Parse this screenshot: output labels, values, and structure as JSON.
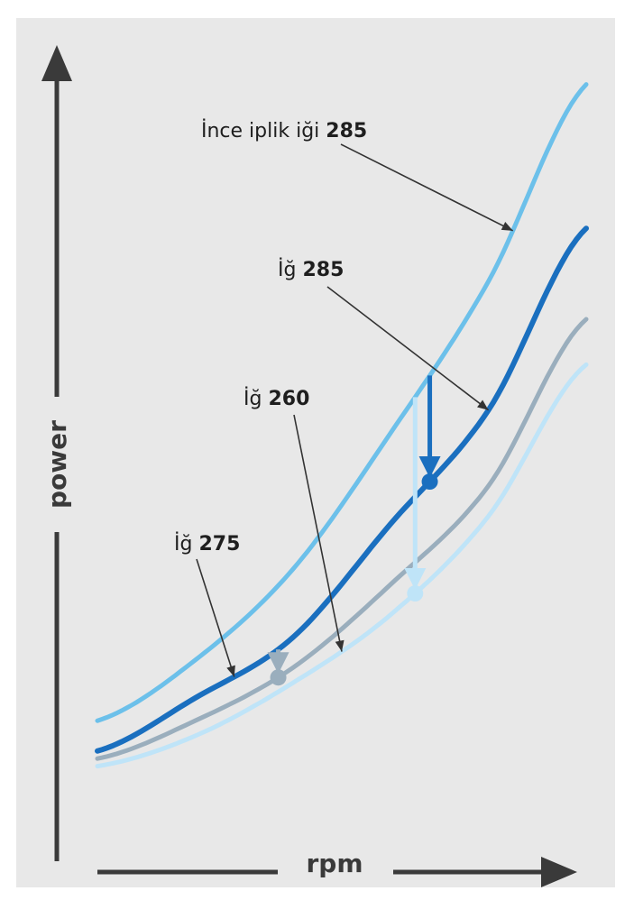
{
  "chart_data": {
    "type": "line",
    "title": "",
    "xlabel": "rpm",
    "ylabel": "power",
    "xlim": [
      0,
      100
    ],
    "ylim": [
      0,
      100
    ],
    "grid": false,
    "legend": "none",
    "series": [
      {
        "name": "İnce iplik iği 285",
        "color": "#6cc0ea",
        "x": [
          0,
          20,
          40,
          60,
          80,
          100
        ],
        "y": [
          12,
          20,
          32,
          50,
          70,
          96
        ]
      },
      {
        "name": "İğ 285",
        "color": "#1a6fbf",
        "x": [
          0,
          20,
          40,
          60,
          80,
          100
        ],
        "y": [
          8,
          15,
          23,
          38,
          53,
          77
        ]
      },
      {
        "name": "İğ 275",
        "color": "#9aaebd",
        "x": [
          0,
          20,
          40,
          60,
          80,
          100
        ],
        "y": [
          7,
          12,
          19,
          30,
          43,
          65
        ]
      },
      {
        "name": "İğ 260",
        "color": "#bfe4f8",
        "x": [
          0,
          20,
          40,
          60,
          80,
          100
        ],
        "y": [
          6,
          10,
          17,
          26,
          39,
          59
        ]
      }
    ],
    "annotations": [
      {
        "text_plain": "İnce iplik iği ",
        "text_bold": "285",
        "series": 0,
        "target_x": 85
      },
      {
        "text_plain": "İğ ",
        "text_bold": "285",
        "series": 1,
        "target_x": 80
      },
      {
        "text_plain": "İğ ",
        "text_bold": "260",
        "series": 3,
        "target_x": 50
      },
      {
        "text_plain": "İğ ",
        "text_bold": "275",
        "series": 1,
        "target_x": 28
      }
    ],
    "drops": [
      {
        "x": 37,
        "from_series": 1,
        "to_series": 2,
        "color": "#9aaebd"
      },
      {
        "x": 68,
        "from_series": 0,
        "to_series": 1,
        "color": "#1a6fbf"
      },
      {
        "x": 65,
        "from_series": 0,
        "to_series": 3,
        "color": "#bfe4f8"
      }
    ],
    "axis_color": "#3a3a3a"
  }
}
